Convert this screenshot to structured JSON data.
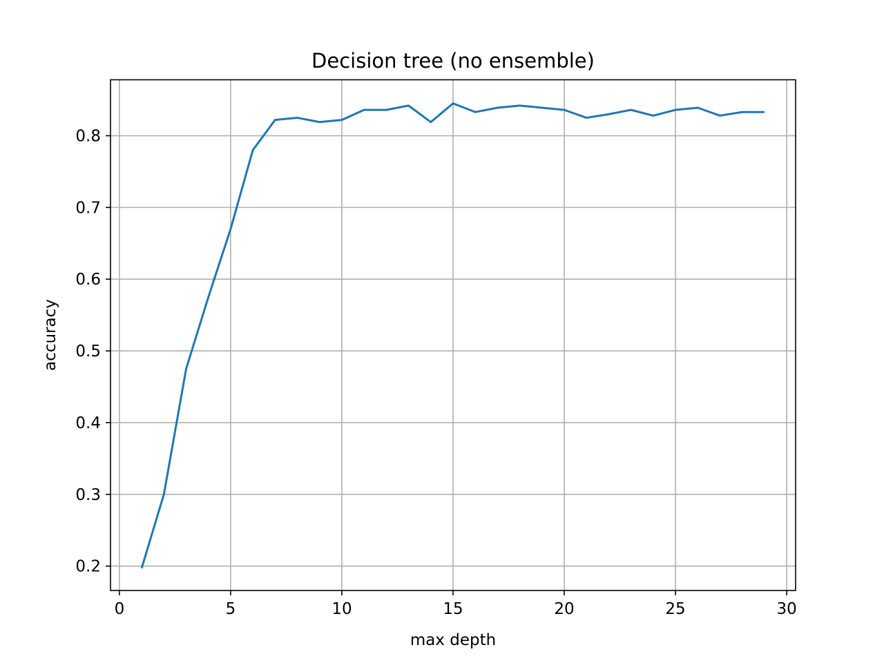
{
  "chart_data": {
    "type": "line",
    "title": "Decision tree (no ensemble)",
    "xlabel": "max depth",
    "ylabel": "accuracy",
    "xlim": [
      -0.4,
      30.4
    ],
    "ylim": [
      0.166,
      0.878
    ],
    "xticks": [
      0,
      5,
      10,
      15,
      20,
      25,
      30
    ],
    "yticks": [
      0.2,
      0.3,
      0.4,
      0.5,
      0.6,
      0.7,
      0.8
    ],
    "xtick_labels": [
      "0",
      "5",
      "10",
      "15",
      "20",
      "25",
      "30"
    ],
    "ytick_labels": [
      "0.2",
      "0.3",
      "0.4",
      "0.5",
      "0.6",
      "0.7",
      "0.8"
    ],
    "grid": true,
    "series": [
      {
        "color": "#1f77b4",
        "x": [
          1,
          2,
          3,
          4,
          5,
          6,
          7,
          8,
          9,
          10,
          11,
          12,
          13,
          14,
          15,
          16,
          17,
          18,
          19,
          20,
          21,
          22,
          23,
          24,
          25,
          26,
          27,
          28,
          29
        ],
        "y": [
          0.197,
          0.3,
          0.475,
          0.575,
          0.67,
          0.78,
          0.822,
          0.825,
          0.819,
          0.822,
          0.836,
          0.836,
          0.842,
          0.819,
          0.845,
          0.833,
          0.839,
          0.842,
          0.839,
          0.836,
          0.825,
          0.83,
          0.836,
          0.828,
          0.836,
          0.839,
          0.828,
          0.833,
          0.833
        ]
      }
    ]
  }
}
